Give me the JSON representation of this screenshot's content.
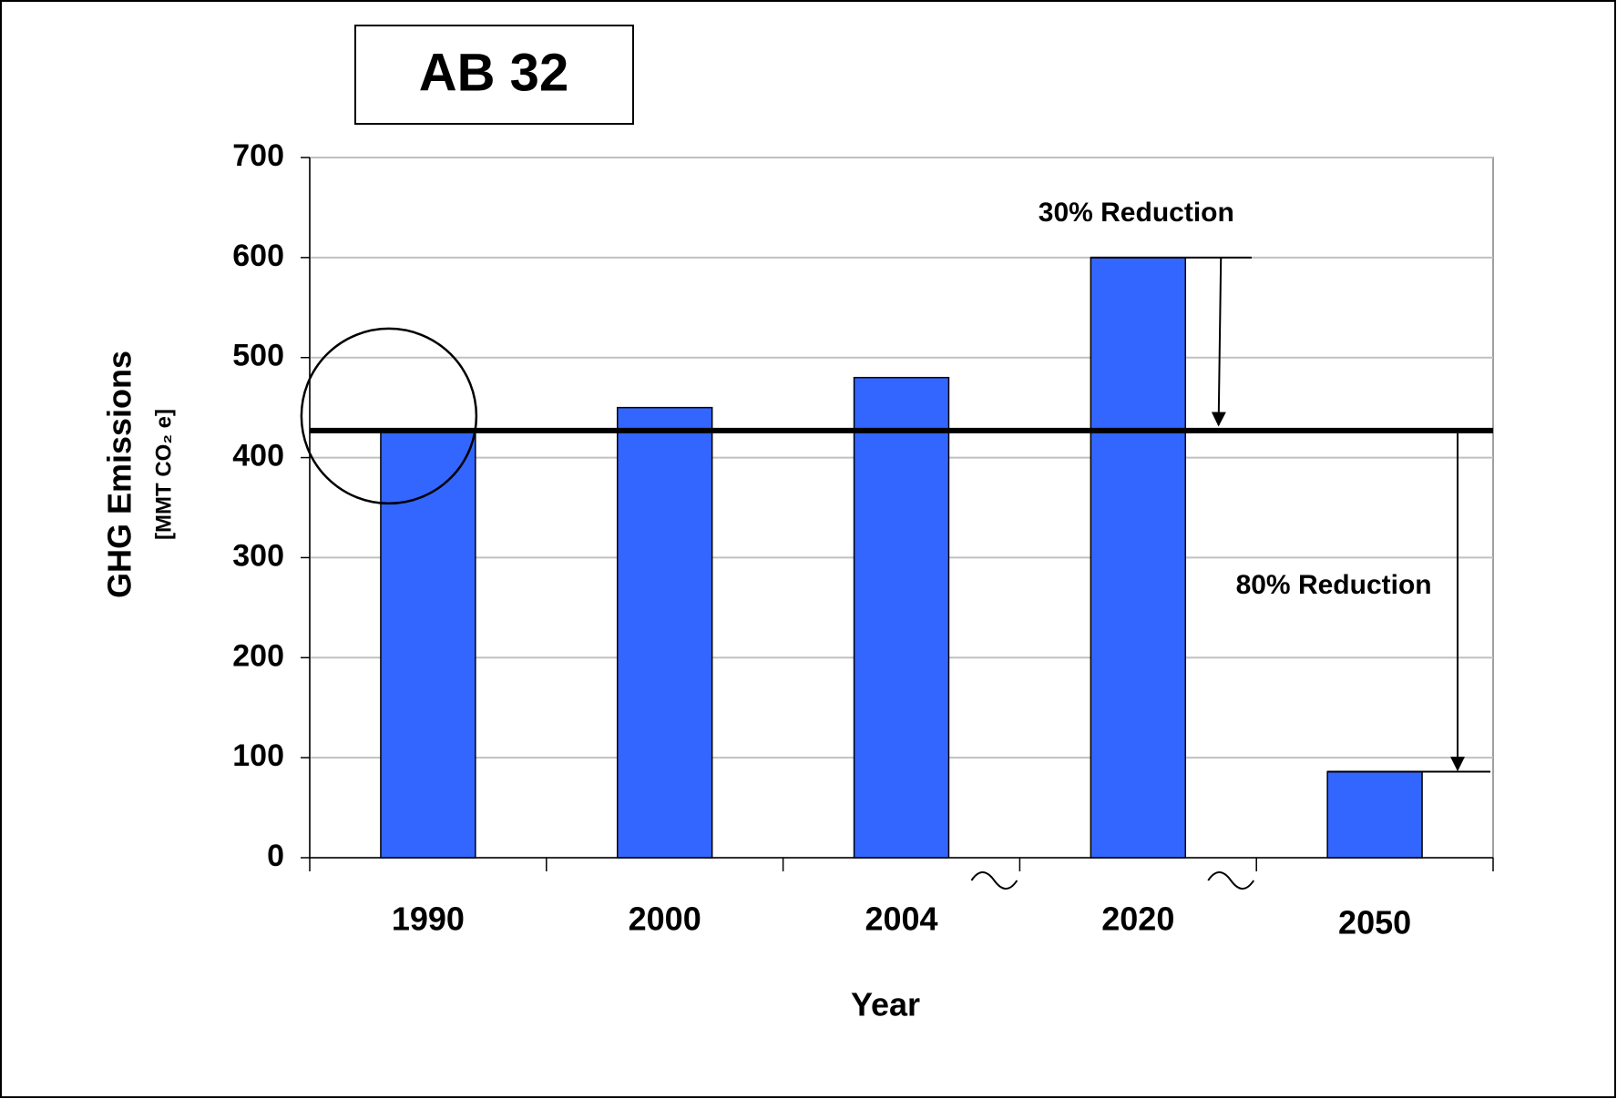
{
  "chart_data": {
    "type": "bar",
    "title": "AB 32",
    "x_label": "Year",
    "y_label": "GHG Emissions",
    "y_sublabel": "[MMT CO₂ e]",
    "categories": [
      "1990",
      "2000",
      "2004",
      "2020",
      "2050"
    ],
    "values": [
      427,
      450,
      480,
      600,
      86
    ],
    "color": "#3366ff",
    "ylim": [
      0,
      700
    ],
    "yticks": [
      0,
      100,
      200,
      300,
      400,
      500,
      600,
      700
    ],
    "grid": true,
    "reference_line": 427,
    "annotations": [
      "30% Reduction",
      "80% Reduction"
    ]
  }
}
